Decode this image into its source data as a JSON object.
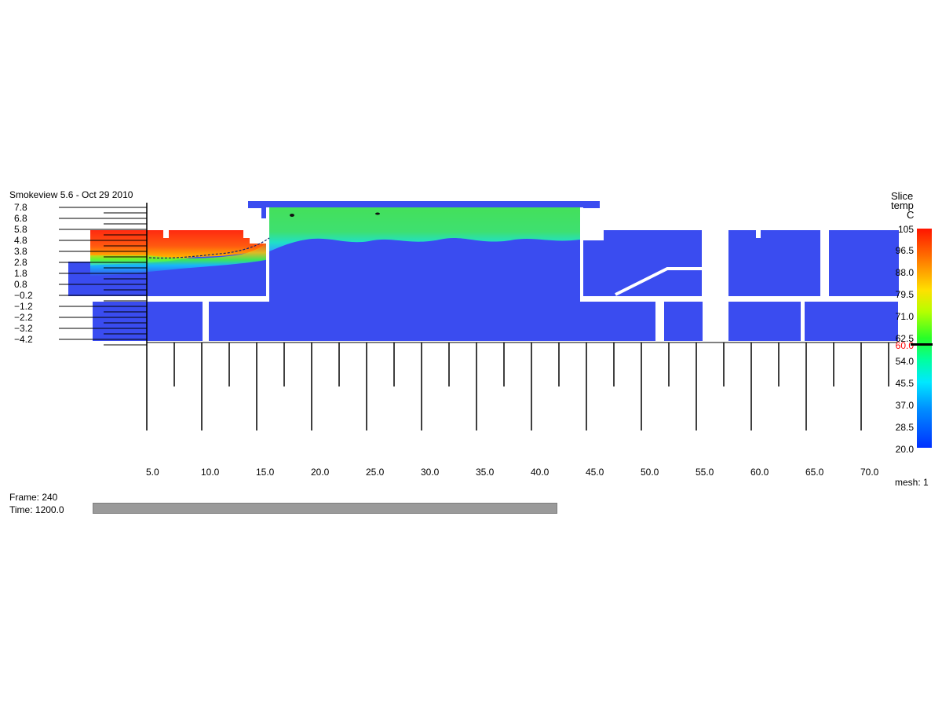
{
  "app": {
    "title": "Smokeview 5.6 - Oct 29 2010"
  },
  "status": {
    "frame_label": "Frame: 240",
    "time_label": "Time: 1200.0",
    "mesh_label": "mesh: 1"
  },
  "progress": {
    "fraction": 0.5
  },
  "colorbar": {
    "title_lines": [
      "Slice",
      "temp",
      "C"
    ],
    "values": [
      "105",
      "96.5",
      "88.0",
      "79.5",
      "71.0",
      "62.5",
      "60.0",
      "54.0",
      "45.5",
      "37.0",
      "28.5",
      "20.0"
    ],
    "highlight_value": "60.0",
    "highlight_color": "#ff0000",
    "stops": [
      "#ff1500",
      "#ff6a00",
      "#ffe000",
      "#b5ff00",
      "#28ff28",
      "#00ffa0",
      "#00e8ff",
      "#0090ff",
      "#0030ff"
    ]
  },
  "axes": {
    "y_labels": [
      "7.8",
      "6.8",
      "5.8",
      "4.8",
      "3.8",
      "2.8",
      "1.8",
      "0.8",
      "−0.2",
      "−1.2",
      "−2.2",
      "−3.2",
      "−4.2"
    ],
    "x_labels": [
      "5.0",
      "10.0",
      "15.0",
      "20.0",
      "25.0",
      "30.0",
      "35.0",
      "40.0",
      "45.0",
      "50.0",
      "55.0",
      "60.0",
      "65.0",
      "70.0"
    ]
  },
  "colors": {
    "ambient": "#3a4cf0",
    "hot": "#ff2a10",
    "warm_layer": "#3ee85a",
    "frame_line": "#000000"
  }
}
